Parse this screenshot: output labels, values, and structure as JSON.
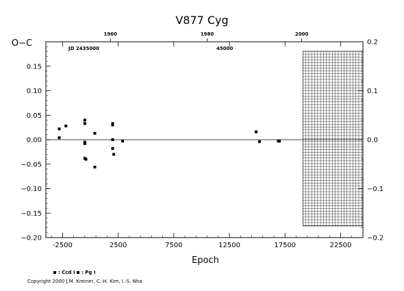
{
  "chart_data": {
    "type": "scatter",
    "title": "V877  Cyg",
    "ylabel": "O−C",
    "xlabel": "Epoch",
    "xlim": [
      -4000,
      24500
    ],
    "ylim": [
      -0.2,
      0.2
    ],
    "x_ticks": [
      -2500,
      2500,
      7500,
      12500,
      17500,
      22500
    ],
    "y_ticks_left": [
      -0.2,
      -0.15,
      -0.1,
      -0.05,
      0.0,
      0.05,
      0.1,
      0.15
    ],
    "y_tick_labels_left": [
      "−0.20",
      "−0.15",
      "−0.10",
      "−0.05",
      "0.00",
      "0.05",
      "0.10",
      "0.15"
    ],
    "y_ticks_right": [
      -0.2,
      -0.1,
      0.0,
      0.1,
      0.2
    ],
    "y_tick_labels_right": [
      "−0.2",
      "−0.1",
      "0.0",
      "0.1",
      "0.2"
    ],
    "top_axis_label": "JD 2435000",
    "top_axis_mid_label": "45000",
    "year_ticks": [
      {
        "label": "1960",
        "epoch": 1800
      },
      {
        "label": "1980",
        "epoch": 10500
      },
      {
        "label": "2000",
        "epoch": 19000
      }
    ],
    "future_region": {
      "epoch_start": 19100,
      "epoch_end": 24500
    },
    "series": [
      {
        "name": ": Ccd I",
        "points": [
          [
            -2800,
            0.004
          ],
          [
            -2800,
            0.022
          ],
          [
            -2200,
            0.028
          ],
          [
            -500,
            0.04
          ],
          [
            -500,
            0.033
          ],
          [
            -500,
            -0.005
          ],
          [
            -500,
            -0.008
          ],
          [
            -500,
            -0.038
          ],
          [
            -400,
            -0.04
          ],
          [
            400,
            0.013
          ],
          [
            400,
            -0.056
          ],
          [
            2000,
            0.03
          ],
          [
            2000,
            0.033
          ],
          [
            2000,
            0.0
          ],
          [
            2000,
            -0.018
          ],
          [
            2100,
            -0.03
          ],
          [
            2900,
            -0.003
          ],
          [
            14900,
            0.016
          ],
          [
            15200,
            -0.004
          ],
          [
            16900,
            -0.003
          ],
          [
            17000,
            -0.003
          ]
        ]
      },
      {
        "name": ": Pg I",
        "points": []
      }
    ]
  },
  "copyright": "Copyright 2000 J.M. Kreiner, C.-H. Kim, I.-S. Nha"
}
